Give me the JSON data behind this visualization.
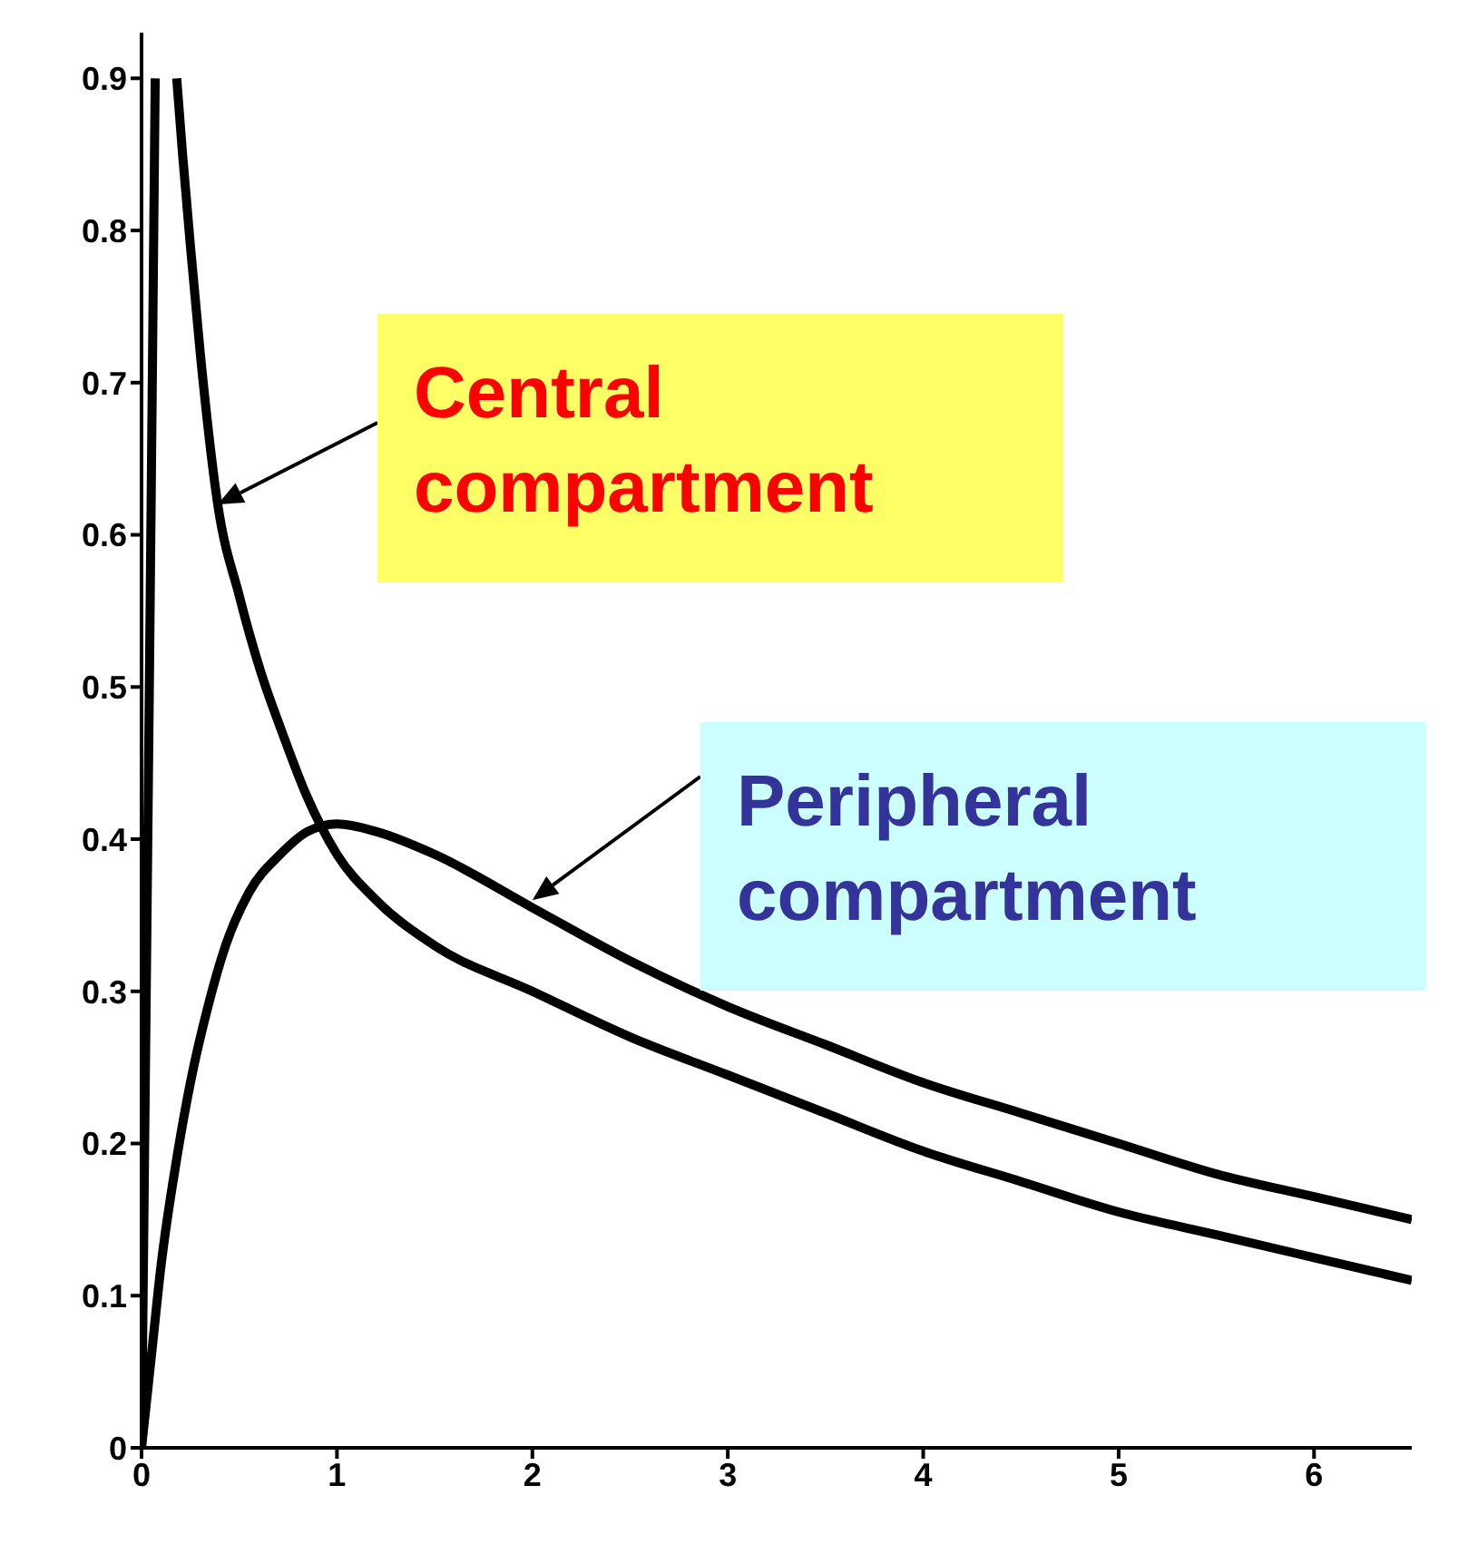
{
  "chart_data": {
    "type": "line",
    "xlim": [
      0,
      6.5
    ],
    "xticks": [
      0,
      1,
      2,
      3,
      4,
      5,
      6
    ],
    "ylim": [
      0,
      0.93
    ],
    "yticks": [
      0,
      0.1,
      0.2,
      0.3,
      0.4,
      0.5,
      0.6,
      0.7,
      0.8,
      0.9
    ],
    "marker": "none",
    "line_style": "solid",
    "series": [
      {
        "color": "#000000",
        "x": [
          0,
          0.04,
          0.07,
          0.12,
          0.18,
          0.21,
          0.25,
          0.3,
          0.39,
          0.5,
          0.61,
          0.72,
          0.84,
          1.0,
          1.2,
          1.5,
          2.0,
          2.5,
          3.0,
          3.5,
          4.0,
          4.5,
          5.0,
          5.5,
          6.0,
          6.5
        ],
        "values": [
          0,
          0.5,
          0.9,
          null,
          0.9,
          0.85,
          0.79,
          0.72,
          0.62,
          0.56,
          0.51,
          0.47,
          0.43,
          0.39,
          0.36,
          0.33,
          0.3,
          0.27,
          0.245,
          0.22,
          0.195,
          0.175,
          0.155,
          0.14,
          0.125,
          0.11
        ]
      },
      {
        "color": "#000000",
        "x": [
          0,
          0.05,
          0.1,
          0.18,
          0.25,
          0.34,
          0.43,
          0.55,
          0.71,
          0.85,
          1.0,
          1.2,
          1.5,
          2.0,
          2.5,
          3.0,
          3.5,
          4.0,
          4.5,
          5.0,
          5.5,
          6.0,
          6.5
        ],
        "values": [
          0,
          0.06,
          0.12,
          0.19,
          0.24,
          0.29,
          0.33,
          0.365,
          0.39,
          0.405,
          0.41,
          0.405,
          0.39,
          0.355,
          0.32,
          0.29,
          0.265,
          0.24,
          0.22,
          0.2,
          0.18,
          0.165,
          0.15
        ]
      }
    ],
    "annotations": [
      {
        "text": "Central compartment",
        "x": 0.39,
        "y": 0.62
      },
      {
        "text": "Peripheral compartment",
        "x": 2.0,
        "y": 0.36
      }
    ]
  }
}
